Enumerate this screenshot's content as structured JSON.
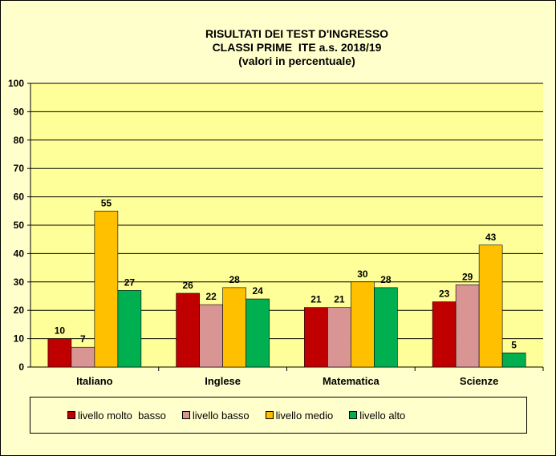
{
  "chart_data": {
    "type": "bar",
    "title_lines": [
      "RISULTATI DEI TEST D'INGRESSO",
      "CLASSI PRIME  ITE a.s. 2018/19",
      "(valori in percentuale)"
    ],
    "categories": [
      "Italiano",
      "Inglese",
      "Matematica",
      "Scienze"
    ],
    "series": [
      {
        "name": "livello molto  basso",
        "color": "#c00000",
        "values": [
          10,
          26,
          21,
          23
        ],
        "labels": [
          "10",
          "26",
          "21",
          "23"
        ]
      },
      {
        "name": "livello basso",
        "color": "#d99594",
        "values": [
          7,
          22,
          21,
          29
        ],
        "labels": [
          "7",
          "22",
          "21",
          "29"
        ]
      },
      {
        "name": "livello medio",
        "color": "#ffc000",
        "values": [
          55,
          28,
          30,
          43
        ],
        "labels": [
          "55",
          "28",
          "30",
          "43"
        ]
      },
      {
        "name": "livello alto",
        "color": "#00b050",
        "values": [
          27,
          24,
          28,
          5
        ],
        "labels": [
          "27",
          "24",
          "28",
          "5"
        ]
      }
    ],
    "ylim": [
      0,
      100
    ],
    "yticks": [
      0,
      10,
      20,
      30,
      40,
      50,
      60,
      70,
      80,
      90,
      100
    ],
    "grid": true,
    "legend_position": "bottom",
    "plot_background": "#ffff99"
  }
}
